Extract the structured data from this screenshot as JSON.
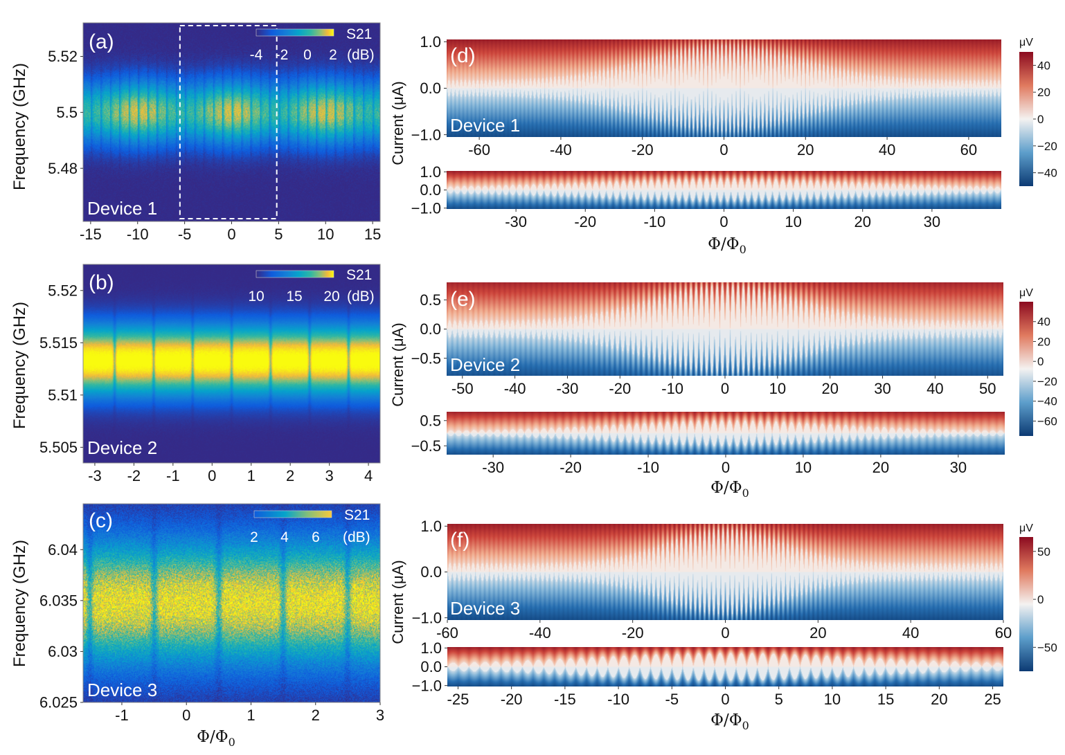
{
  "chart_data": [
    {
      "id": "a",
      "type": "heatmap",
      "panel_label": "(a)",
      "device": "Device 1",
      "ylabel": "Frequency (GHz)",
      "xlabel": "",
      "xlim": [
        -15.8,
        15.8
      ],
      "ylim": [
        5.461,
        5.532
      ],
      "x_ticks": [
        -15,
        -10,
        -5,
        0,
        5,
        10,
        15
      ],
      "x_tick_labels": [
        "-15",
        "-10",
        "-5",
        "0",
        "5",
        "10",
        "15"
      ],
      "y_ticks": [
        5.52,
        5.5,
        5.48
      ],
      "y_tick_labels": [
        "5.52",
        "5.5",
        "5.48"
      ],
      "center": 5.5,
      "halfwidth": 0.014,
      "period": 1.0,
      "envelope_period": 10,
      "dip": 0.35,
      "highlight_box": [
        -5.5,
        4.8
      ],
      "colorbar": {
        "title": "S21",
        "ticks": [
          "-4",
          "-2",
          "0",
          "2"
        ],
        "unit": "(dB)",
        "range": [
          -5,
          3
        ]
      }
    },
    {
      "id": "b",
      "type": "heatmap",
      "panel_label": "(b)",
      "device": "Device 2",
      "ylabel": "Frequency (GHz)",
      "xlabel": "",
      "xlim": [
        -3.3,
        4.3
      ],
      "ylim": [
        5.5035,
        5.5225
      ],
      "x_ticks": [
        -3,
        -2,
        -1,
        0,
        1,
        2,
        3,
        4
      ],
      "x_tick_labels": [
        "-3",
        "-2",
        "-1",
        "0",
        "1",
        "2",
        "3",
        "4"
      ],
      "y_ticks": [
        5.52,
        5.515,
        5.51,
        5.505
      ],
      "y_tick_labels": [
        "5.52",
        "5.515",
        "5.51",
        "5.505"
      ],
      "center": 5.5133,
      "halfwidth": 0.0033,
      "period": 1.0,
      "dip": 0.3,
      "colorbar": {
        "title": "S21",
        "ticks": [
          "10",
          "15",
          "20"
        ],
        "unit": "(dB)",
        "range": [
          7,
          21
        ]
      }
    },
    {
      "id": "c",
      "type": "heatmap",
      "panel_label": "(c)",
      "device": "Device 3",
      "ylabel": "Frequency (GHz)",
      "xlabel": "Φ/Φ",
      "xlim": [
        -1.6,
        3.0
      ],
      "ylim": [
        6.025,
        6.0445
      ],
      "x_ticks": [
        -1,
        0,
        1,
        2,
        3
      ],
      "x_tick_labels": [
        "-1",
        "0",
        "1",
        "2",
        "3"
      ],
      "y_ticks": [
        6.04,
        6.035,
        6.03,
        6.025
      ],
      "y_tick_labels": [
        "6.04",
        "6.035",
        "6.03",
        "6.025"
      ],
      "center": 6.0348,
      "halfwidth": 0.0055,
      "period": 1.0,
      "dip": 0.35,
      "colorbar": {
        "title": "S21",
        "ticks": [
          "2",
          "4",
          "6"
        ],
        "unit": "(dB)",
        "range": [
          0.5,
          7
        ]
      }
    },
    {
      "id": "d",
      "type": "heatmap",
      "panel_label": "(d)",
      "device": "Device 1",
      "ylabel": "Current (μA)",
      "xlabel": "Φ/Φ",
      "top": {
        "xlim": [
          -68,
          68
        ],
        "ylim": [
          -1.05,
          1.05
        ],
        "x_ticks": [
          -60,
          -40,
          -20,
          0,
          20,
          40,
          60
        ],
        "x_tick_labels": [
          "-60",
          "-40",
          "-20",
          "0",
          "20",
          "40",
          "60"
        ],
        "y_ticks": [
          1.0,
          0.0,
          -1.0
        ],
        "y_tick_labels": [
          "1.0",
          "0.0",
          "−1.0"
        ],
        "period": 1.0,
        "base": 0.18,
        "envelope_amp": 0.78,
        "envelope_width": 27
      },
      "bottom": {
        "xlim": [
          -40,
          40
        ],
        "ylim": [
          -1.05,
          1.05
        ],
        "x_ticks": [
          -30,
          -20,
          -10,
          0,
          10,
          20,
          30
        ],
        "x_tick_labels": [
          "-30",
          "-20",
          "-10",
          "0",
          "10",
          "20",
          "30"
        ],
        "y_ticks": [
          1.0,
          0.0,
          -1.0
        ],
        "y_tick_labels": [
          "1.0",
          "0.0",
          "−1.0"
        ],
        "period": 1.0,
        "base": 0.15,
        "envelope_amp": 0.5,
        "envelope_width": 27
      },
      "colorbar": {
        "unit": "μV",
        "ticks": [
          40,
          20,
          0,
          -20,
          -40
        ],
        "tick_labels": [
          "40",
          "20",
          "0",
          "−20",
          "−40"
        ],
        "range": [
          -50,
          50
        ]
      }
    },
    {
      "id": "e",
      "type": "heatmap",
      "panel_label": "(e)",
      "device": "Device 2",
      "ylabel": "Current (μA)",
      "xlabel": "Φ/Φ",
      "top": {
        "xlim": [
          -53,
          53
        ],
        "ylim": [
          -0.8,
          0.8
        ],
        "x_ticks": [
          -50,
          -40,
          -30,
          -20,
          -10,
          0,
          10,
          20,
          30,
          40,
          50
        ],
        "x_tick_labels": [
          "-50",
          "-40",
          "-30",
          "-20",
          "-10",
          "0",
          "10",
          "20",
          "30",
          "40",
          "50"
        ],
        "y_ticks": [
          0.5,
          0.0,
          -0.5
        ],
        "y_tick_labels": [
          "0.5",
          "0.0",
          "−0.5"
        ],
        "period": 1.0,
        "base": 0.15,
        "envelope_amp": 0.62,
        "envelope_width": 20
      },
      "bottom": {
        "xlim": [
          -36,
          36
        ],
        "ylim": [
          -0.85,
          0.85
        ],
        "x_ticks": [
          -30,
          -20,
          -10,
          0,
          10,
          20,
          30
        ],
        "x_tick_labels": [
          "-30",
          "-20",
          "-10",
          "0",
          "10",
          "20",
          "30"
        ],
        "y_ticks": [
          0.5,
          -0.5
        ],
        "y_tick_labels": [
          "0.5",
          "−0.5"
        ],
        "period": 1.0,
        "base": 0.1,
        "envelope_amp": 0.42,
        "envelope_width": 20
      },
      "colorbar": {
        "unit": "μV",
        "ticks": [
          40,
          20,
          0,
          -20,
          -40,
          -60
        ],
        "tick_labels": [
          "40",
          "20",
          "0",
          "−20",
          "−40",
          "−60"
        ],
        "range": [
          -75,
          60
        ]
      }
    },
    {
      "id": "f",
      "type": "heatmap",
      "panel_label": "(f)",
      "device": "Device 3",
      "ylabel": "Current (μA)",
      "xlabel": "Φ/Φ",
      "top": {
        "xlim": [
          -60,
          60
        ],
        "ylim": [
          -1.05,
          1.05
        ],
        "x_ticks": [
          -60,
          -40,
          -20,
          0,
          20,
          40,
          60
        ],
        "x_tick_labels": [
          "-60",
          "-40",
          "-20",
          "0",
          "20",
          "40",
          "60"
        ],
        "y_ticks": [
          1.0,
          0.0,
          -1.0
        ],
        "y_tick_labels": [
          "1.0",
          "0.0",
          "−1.0"
        ],
        "period": 1.0,
        "base": 0.2,
        "envelope_amp": 0.75,
        "envelope_width": 18
      },
      "bottom": {
        "xlim": [
          -26,
          26
        ],
        "ylim": [
          -1.05,
          1.05
        ],
        "x_ticks": [
          -25,
          -20,
          -15,
          -10,
          -5,
          0,
          5,
          10,
          15,
          20,
          25
        ],
        "x_tick_labels": [
          "-25",
          "-20",
          "-15",
          "-10",
          "-5",
          "0",
          "5",
          "10",
          "15",
          "20",
          "25"
        ],
        "y_ticks": [
          1.0,
          0.0,
          -1.0
        ],
        "y_tick_labels": [
          "1.0",
          "0.0",
          "−1.0"
        ],
        "period": 1.0,
        "base": 0.15,
        "envelope_amp": 0.6,
        "envelope_width": 18
      },
      "colorbar": {
        "unit": "μV",
        "ticks": [
          50,
          0,
          -50
        ],
        "tick_labels": [
          "50",
          "0",
          "−50"
        ],
        "range": [
          -75,
          65
        ]
      }
    }
  ],
  "flux_symbol": "Φ/Φ",
  "flux_subscript": "0"
}
